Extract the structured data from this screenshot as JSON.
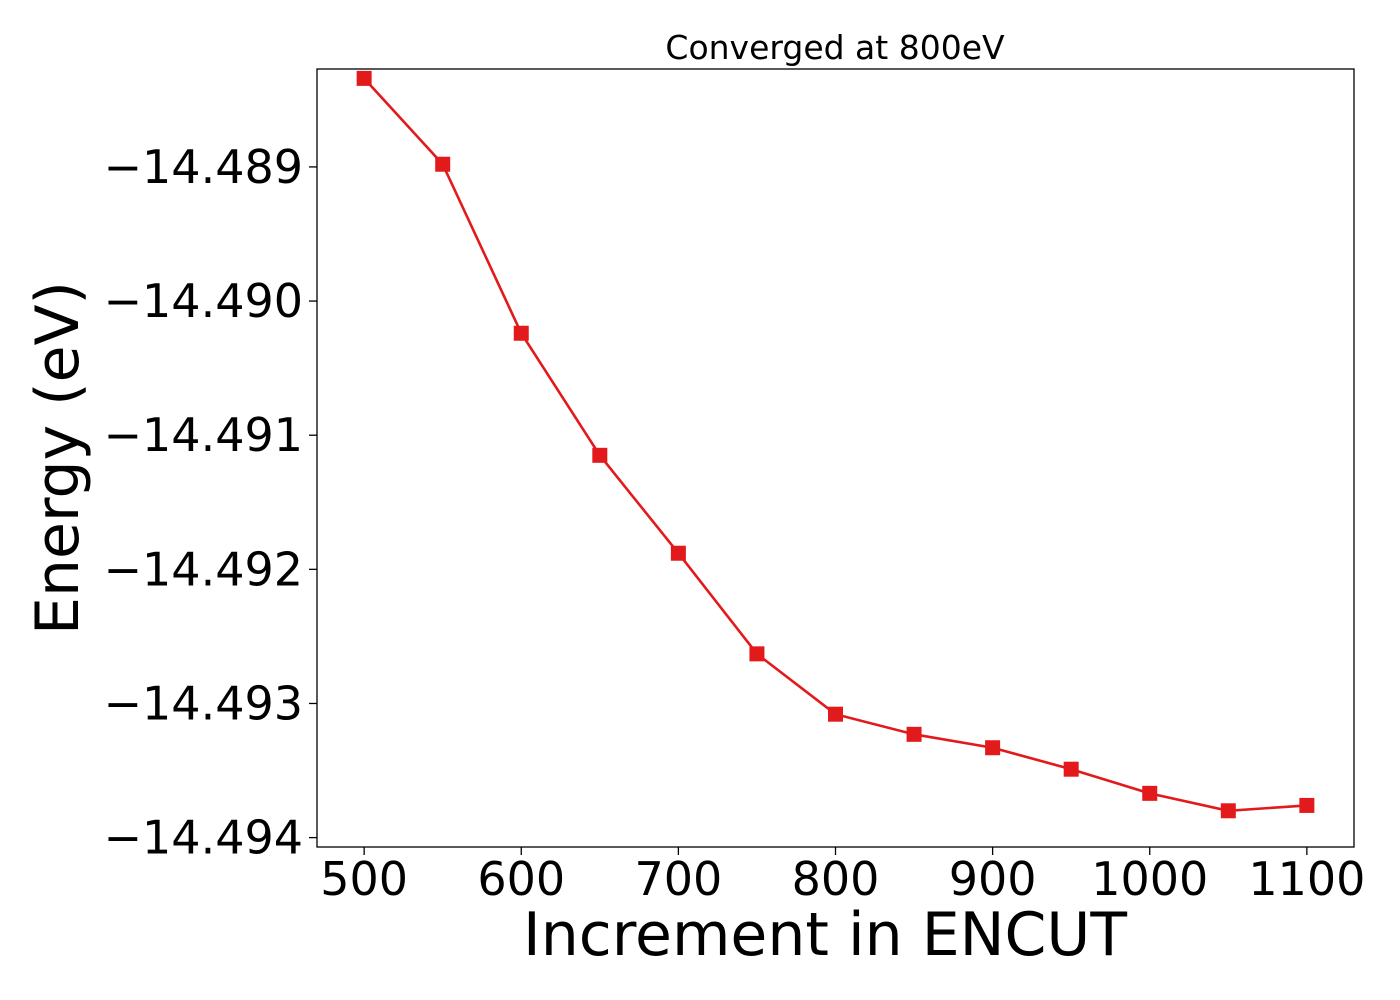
{
  "chart_data": {
    "type": "line",
    "title": "Converged at 800eV",
    "xlabel": "Increment in ENCUT",
    "ylabel": "Energy (eV)",
    "x": [
      500,
      550,
      600,
      650,
      700,
      750,
      800,
      850,
      900,
      950,
      1000,
      1050,
      1100
    ],
    "series": [
      {
        "color": "#e31a1c",
        "marker": "square",
        "values": [
          -14.48834,
          -14.48898,
          -14.49024,
          -14.49115,
          -14.49188,
          -14.49263,
          -14.49308,
          -14.49323,
          -14.49333,
          -14.49349,
          -14.49367,
          -14.4938,
          -14.49376
        ]
      }
    ],
    "xlim": [
      470,
      1130
    ],
    "ylim": [
      -14.49407,
      -14.48827
    ],
    "xticks": [
      500,
      600,
      700,
      800,
      900,
      1000,
      1100
    ],
    "xtick_labels": [
      "500",
      "600",
      "700",
      "800",
      "900",
      "1000",
      "1100"
    ],
    "yticks": [
      -14.489,
      -14.49,
      -14.491,
      -14.492,
      -14.493,
      -14.494
    ],
    "ytick_labels": [
      "−14.489",
      "−14.490",
      "−14.491",
      "−14.492",
      "−14.493",
      "−14.494"
    ],
    "grid": false,
    "legend": "none"
  }
}
